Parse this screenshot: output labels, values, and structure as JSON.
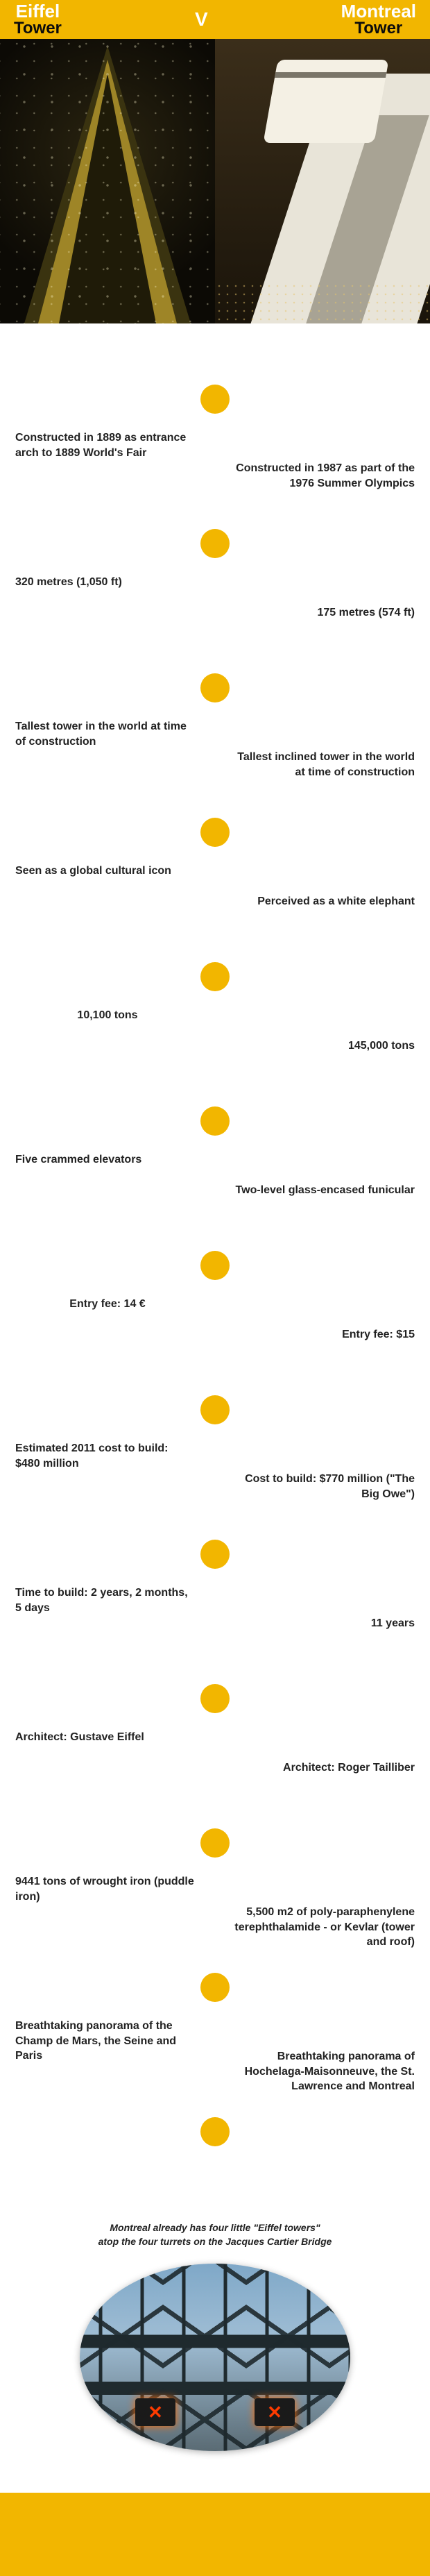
{
  "colors": {
    "accent": "#f2b600",
    "header_bg": "#f2b600",
    "left_title": "#ffffff",
    "right_title": "#ffffff",
    "sub_title": "#0c0c0c",
    "v_color": "#ffffff",
    "node_color": "#f2b600",
    "text_color": "#222222"
  },
  "header": {
    "left_top": "Eiffel",
    "left_bottom": "Tower",
    "right_top": "Montreal",
    "right_bottom": "Tower",
    "vs": "V"
  },
  "facts": [
    {
      "left": "Constructed in 1889 as entrance arch to 1889 World's Fair",
      "right": "Constructed in 1987 as part of the 1976 Summer Olympics"
    },
    {
      "left": "320 metres (1,050 ft)",
      "right": "175 metres (574 ft)"
    },
    {
      "left": "Tallest tower in the world at time of construction",
      "right": "Tallest inclined tower in the world at time of construction"
    },
    {
      "left": "Seen as a global cultural icon",
      "right": "Perceived as a white elephant"
    },
    {
      "left": "10,100 tons",
      "left_center": true,
      "right": "145,000 tons"
    },
    {
      "left": "Five crammed elevators",
      "right": "Two-level glass-encased funicular"
    },
    {
      "left": "Entry fee: 14 €",
      "left_center": true,
      "right": "Entry fee: $15"
    },
    {
      "left": "Estimated 2011 cost to build: $480 million",
      "right": "Cost to build: $770 million (\"The Big Owe\")"
    },
    {
      "left": "Time to build: 2 years, 2 months, 5 days",
      "right": "11 years"
    },
    {
      "left": "Architect: Gustave Eiffel",
      "right": "Architect: Roger Tailliber"
    },
    {
      "left": "9441 tons of wrought iron (puddle iron)",
      "right": "5,500 m2 of poly-paraphenylene terephthalamide - or  Kevlar (tower and roof)"
    },
    {
      "left": "Breathtaking panorama of the Champ de Mars, the Seine and Paris",
      "right": "Breathtaking panorama of Hochelaga-Maisonneuve, the St. Lawrence and Montreal"
    }
  ],
  "footer_note": {
    "line1": "Montreal already has four little \"Eiffel towers\"",
    "line2": "atop the four turrets on the Jacques Cartier Bridge"
  }
}
